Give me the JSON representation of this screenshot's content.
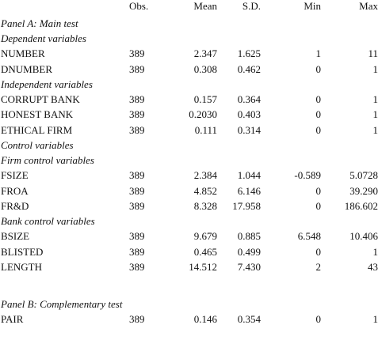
{
  "header": [
    "Obs.",
    "Mean",
    "S.D.",
    "Min",
    "Max"
  ],
  "rows": [
    {
      "label": "Panel A: Main test"
    },
    {
      "label": "Dependent variables"
    },
    {
      "label": "NUMBER",
      "cells": [
        "389",
        "2.347",
        "1.625",
        "1",
        "11"
      ]
    },
    {
      "label": "DNUMBER",
      "cells": [
        "389",
        "0.308",
        "0.462",
        "0",
        "1"
      ]
    },
    {
      "label": "Independent variables"
    },
    {
      "label": "CORRUPT BANK",
      "cells": [
        "389",
        "0.157",
        "0.364",
        "0",
        "1"
      ]
    },
    {
      "label": "HONEST BANK",
      "cells": [
        "389",
        "0.2030",
        "0.403",
        "0",
        "1"
      ]
    },
    {
      "label": "ETHICAL FIRM",
      "cells": [
        "389",
        "0.111",
        "0.314",
        "0",
        "1"
      ]
    },
    {
      "label": "Control variables"
    },
    {
      "label": "Firm control variables"
    },
    {
      "label": "FSIZE",
      "cells": [
        "389",
        "2.384",
        "1.044",
        "-0.589",
        "5.0728"
      ]
    },
    {
      "label": "FROA",
      "cells": [
        "389",
        "4.852",
        "6.146",
        "0",
        "39.290"
      ]
    },
    {
      "label": "FR&D",
      "cells": [
        "389",
        "8.328",
        "17.958",
        "0",
        "186.602"
      ]
    },
    {
      "label": "Bank control variables"
    },
    {
      "label": "BSIZE",
      "cells": [
        "389",
        "9.679",
        "0.885",
        "6.548",
        "10.406"
      ]
    },
    {
      "label": "BLISTED",
      "cells": [
        "389",
        "0.465",
        "0.499",
        "0",
        "1"
      ]
    },
    {
      "label": "LENGTH",
      "cells": [
        "389",
        "14.512",
        "7.430",
        "2",
        "43"
      ]
    },
    {
      "label": "Panel B: Complementary test"
    },
    {
      "label": "PAIR",
      "cells": [
        "389",
        "0.146",
        "0.354",
        "0",
        "1"
      ]
    }
  ]
}
